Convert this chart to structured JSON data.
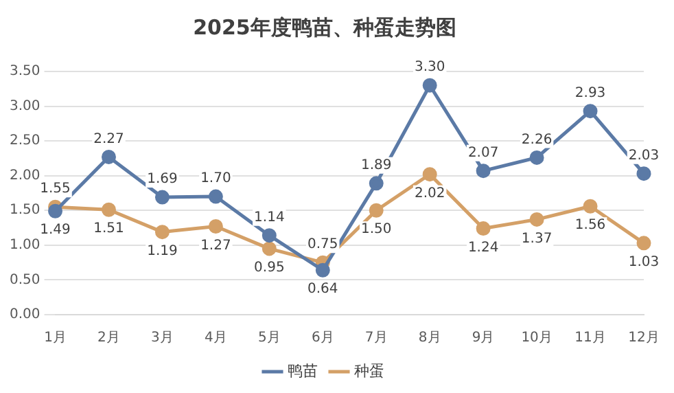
{
  "chart_data": {
    "type": "line",
    "title": "2025年度鸭苗、种蛋走势图",
    "categories": [
      "1月",
      "2月",
      "3月",
      "4月",
      "5月",
      "6月",
      "7月",
      "8月",
      "9月",
      "10月",
      "11月",
      "12月"
    ],
    "series": [
      {
        "name": "鸭苗",
        "color": "#5b7aa6",
        "values": [
          1.49,
          2.27,
          1.69,
          1.7,
          1.14,
          0.64,
          1.89,
          3.3,
          2.07,
          2.26,
          2.93,
          2.03
        ],
        "value_labels": [
          "1.49",
          "2.27",
          "1.69",
          "1.70",
          "1.14",
          "0.64",
          "1.89",
          "3.30",
          "2.07",
          "2.26",
          "2.93",
          "2.03"
        ]
      },
      {
        "name": "种蛋",
        "color": "#d4a067",
        "values": [
          1.55,
          1.51,
          1.19,
          1.27,
          0.95,
          0.75,
          1.5,
          2.02,
          1.24,
          1.37,
          1.56,
          1.03
        ],
        "value_labels": [
          "1.55",
          "1.51",
          "1.19",
          "1.27",
          "0.95",
          "0.75",
          "1.50",
          "2.02",
          "1.24",
          "1.37",
          "1.56",
          "1.03"
        ]
      }
    ],
    "ylim": [
      0,
      3.5
    ],
    "yticks": [
      {
        "value": 0,
        "label": "0.00"
      },
      {
        "value": 0.5,
        "label": "0.50"
      },
      {
        "value": 1,
        "label": "1.00"
      },
      {
        "value": 1.5,
        "label": "1.50"
      },
      {
        "value": 2,
        "label": "2.00"
      },
      {
        "value": 2.5,
        "label": "2.50"
      },
      {
        "value": 3,
        "label": "3.00"
      },
      {
        "value": 3.5,
        "label": "3.50"
      }
    ],
    "grid": "y",
    "legend": "bottom",
    "marker": "circle",
    "line_style": "solid"
  }
}
